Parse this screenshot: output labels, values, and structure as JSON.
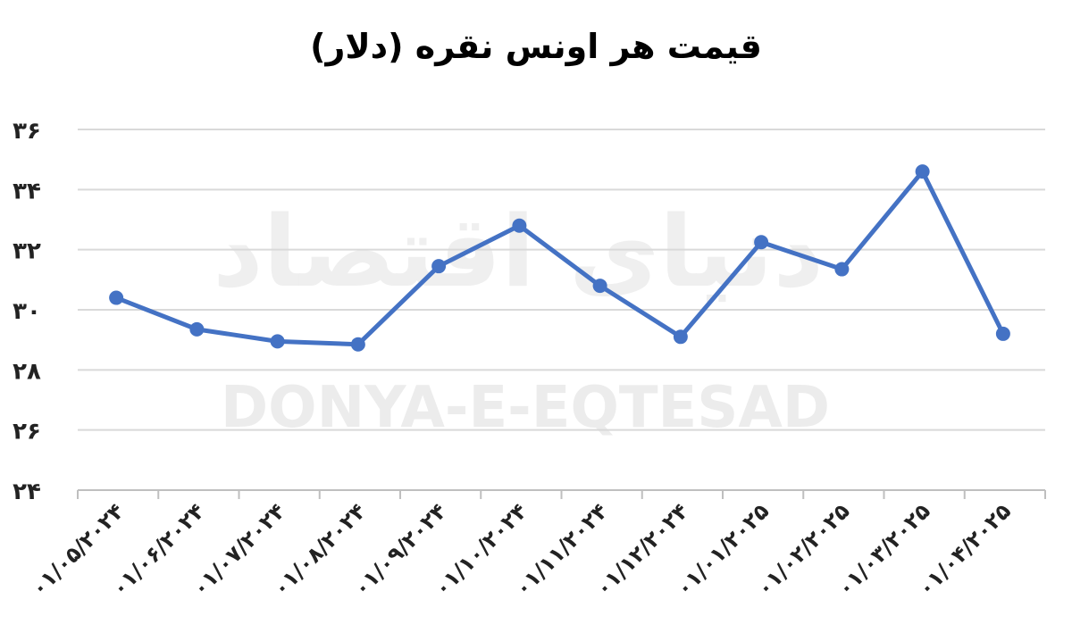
{
  "chart_data": {
    "type": "line",
    "title": "قیمت هر اونس نقره (دلار)",
    "xlabel": "",
    "ylabel": "",
    "categories": [
      "۰۱/۰۵/۲۰۲۴",
      "۰۱/۰۶/۲۰۲۴",
      "۰۱/۰۷/۲۰۲۴",
      "۰۱/۰۸/۲۰۲۴",
      "۰۱/۰۹/۲۰۲۴",
      "۰۱/۱۰/۲۰۲۴",
      "۰۱/۱۱/۲۰۲۴",
      "۰۱/۱۲/۲۰۲۴",
      "۰۱/۰۱/۲۰۲۵",
      "۰۱/۰۲/۲۰۲۵",
      "۰۱/۰۳/۲۰۲۵",
      "۰۱/۰۴/۲۰۲۵"
    ],
    "series": [
      {
        "values": [
          30.4,
          29.35,
          28.95,
          28.85,
          31.45,
          32.8,
          30.8,
          29.1,
          32.25,
          31.35,
          34.6,
          29.2
        ],
        "color": "#4472C4"
      }
    ],
    "ylim": [
      24,
      36
    ],
    "yticks": [
      24,
      26,
      28,
      30,
      32,
      34,
      36
    ],
    "ytick_labels": [
      "۲۴",
      "۲۶",
      "۲۸",
      "۳۰",
      "۳۲",
      "۳۴",
      "۳۶"
    ],
    "grid": true,
    "legend": "none"
  },
  "watermark": {
    "latin": "DONYA-E-EQTESAD",
    "persian": "دنیای اقتصاد"
  }
}
